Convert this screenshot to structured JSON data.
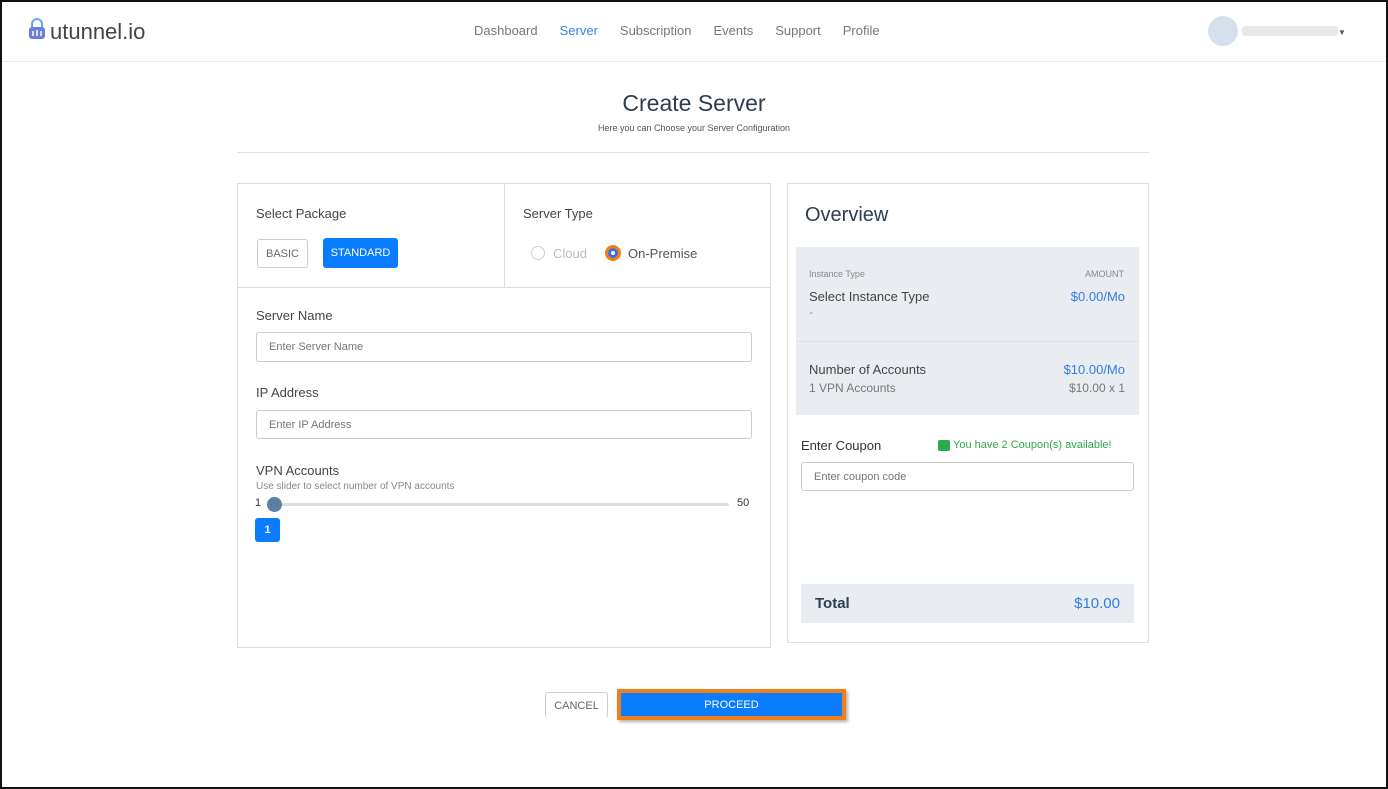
{
  "brand": {
    "name": "utunnel.io"
  },
  "nav": {
    "items": [
      "Dashboard",
      "Server",
      "Subscription",
      "Events",
      "Support",
      "Profile"
    ],
    "active": "Server"
  },
  "page": {
    "title": "Create Server",
    "subtitle": "Here you can Choose your Server Configuration"
  },
  "package": {
    "label": "Select Package",
    "options": [
      "BASIC",
      "STANDARD"
    ],
    "selected": "STANDARD"
  },
  "server_type": {
    "label": "Server Type",
    "options": [
      "Cloud",
      "On-Premise"
    ],
    "selected": "On-Premise"
  },
  "server_name": {
    "label": "Server Name",
    "placeholder": "Enter Server Name"
  },
  "ip_address": {
    "label": "IP Address",
    "placeholder": "Enter IP Address"
  },
  "vpn_accounts": {
    "label": "VPN Accounts",
    "hint": "Use slider to select number of VPN accounts",
    "min": "1",
    "max": "50",
    "value": "1"
  },
  "overview": {
    "title": "Overview",
    "instance_header": "Instance Type",
    "amount_header": "AMOUNT",
    "instance_label": "Select Instance Type",
    "instance_value": "-",
    "instance_amount": "$0.00/Mo",
    "accounts_label": "Number of Accounts",
    "accounts_sub": "1 VPN Accounts",
    "accounts_amount": "$10.00/Mo",
    "accounts_calc": "$10.00 x 1",
    "coupon_label": "Enter Coupon",
    "coupon_available": "You have 2 Coupon(s) available!",
    "coupon_placeholder": "Enter coupon code",
    "total_label": "Total",
    "total_value": "$10.00"
  },
  "actions": {
    "cancel": "CANCEL",
    "proceed": "PROCEED"
  },
  "colors": {
    "accent": "#0a7cff",
    "highlight": "#f07f1a",
    "success": "#2fa84f"
  }
}
